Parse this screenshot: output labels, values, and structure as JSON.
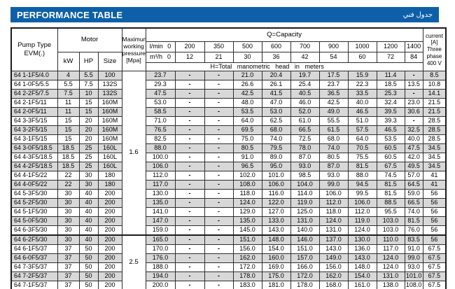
{
  "title_bar": {
    "title": "PERFORMANCE TABLE",
    "title_ar": "جدول فني",
    "bg_color": "#0d60a8"
  },
  "colors": {
    "header_bar_blue": "#0d60a8",
    "row_stripe_gray": "#d8d8d8",
    "border_dark": "#2e2e2e"
  },
  "table": {
    "headers": {
      "pump_type_line1": "Pump Type",
      "pump_type_line2": "EVM(.)",
      "motor": "Motor",
      "kw": "kW",
      "hp": "HP",
      "size": "Size",
      "pressure": [
        "Maximum",
        "working",
        "pressure",
        "[Mpa]"
      ],
      "q_capacity": "Q=Capacity",
      "lmin_label": "l/min",
      "m3h_label": "m³/h",
      "lmin_values": [
        "0",
        "200",
        "350",
        "500",
        "600",
        "700",
        "900",
        "1000",
        "1200",
        "1400"
      ],
      "m3h_values": [
        "0",
        "12",
        "21",
        "30",
        "36",
        "42",
        "54",
        "60",
        "72",
        "84"
      ],
      "h_total": "H=Total manometric head in meters",
      "current": [
        "current",
        "[A]",
        "Three",
        "phase",
        "400 V"
      ]
    },
    "pressure_groups": [
      {
        "value": "1.6",
        "start": 0,
        "span": 18
      },
      {
        "value": "2.5",
        "start": 18,
        "span": 6
      }
    ],
    "rows": [
      {
        "type": "64 1-1F5/4.0",
        "kw": "4",
        "hp": "5.5",
        "size": "100",
        "values": [
          "23.7",
          "-",
          "-",
          "21.0",
          "20.4",
          "19.7",
          "17.5",
          "15.9",
          "11.4",
          "-"
        ],
        "current": "8.5"
      },
      {
        "type": "64 1-0F5/5.5",
        "kw": "5.5",
        "hp": "7.5",
        "size": "132S",
        "values": [
          "29.3",
          "-",
          "-",
          "26.6",
          "26.1",
          "25.4",
          "23.7",
          "22.3",
          "18.5",
          "13.5"
        ],
        "current": "10.8"
      },
      {
        "type": "64 2-2F5/7.5",
        "kw": "7.5",
        "hp": "10",
        "size": "132S",
        "values": [
          "47.5",
          "-",
          "-",
          "42.5",
          "41.5",
          "40.5",
          "36.5",
          "33.5",
          "25.3",
          "-"
        ],
        "current": "14.1"
      },
      {
        "type": "64 2-1F5/11",
        "kw": "11",
        "hp": "15",
        "size": "160M",
        "values": [
          "53.0",
          "-",
          "-",
          "48.0",
          "47.0",
          "46.0",
          "42.5",
          "40.0",
          "32.4",
          "23.0"
        ],
        "current": "21.5"
      },
      {
        "type": "64 2-0F5/11",
        "kw": "11",
        "hp": "15",
        "size": "160M",
        "values": [
          "58.5",
          "-",
          "-",
          "53.5",
          "53.0",
          "52.0",
          "49.0",
          "46.5",
          "39.5",
          "30.6"
        ],
        "current": "21.5"
      },
      {
        "type": "64 3-3F5/15",
        "kw": "15",
        "hp": "20",
        "size": "160M",
        "values": [
          "71.0",
          "-",
          "-",
          "64.0",
          "62.5",
          "61.0",
          "55.5",
          "51.0",
          "39.3",
          "-"
        ],
        "current": "28.5"
      },
      {
        "type": "64 3-2F5/15",
        "kw": "15",
        "hp": "20",
        "size": "160M",
        "values": [
          "76.5",
          "-",
          "-",
          "69.5",
          "68.0",
          "66.5",
          "61.5",
          "57.5",
          "46.5",
          "32.5"
        ],
        "current": "28.5"
      },
      {
        "type": "64 3-1F5/15",
        "kw": "15",
        "hp": "20",
        "size": "160M",
        "values": [
          "82.5",
          "-",
          "-",
          "75.0",
          "74.0",
          "72.5",
          "68.0",
          "64.0",
          "53.5",
          "40.0"
        ],
        "current": "28.5"
      },
      {
        "type": "64 3-0F5/18.5",
        "kw": "18.5",
        "hp": "25",
        "size": "160L",
        "values": [
          "88.0",
          "-",
          "-",
          "80.5",
          "79.5",
          "78.0",
          "74.0",
          "70.5",
          "60.5",
          "47.5"
        ],
        "current": "34.5"
      },
      {
        "type": "64 4-3F5/18.5",
        "kw": "18.5",
        "hp": "25",
        "size": "160L",
        "values": [
          "100.0",
          "-",
          "-",
          "91.0",
          "89.0",
          "87.0",
          "80.5",
          "75.5",
          "60.5",
          "42.0"
        ],
        "current": "34.5"
      },
      {
        "type": "64 4-2F5/18.5",
        "kw": "18.5",
        "hp": "25",
        "size": "160L",
        "values": [
          "106.0",
          "-",
          "-",
          "96.5",
          "95.0",
          "93.0",
          "87.0",
          "81.5",
          "67.5",
          "49.5"
        ],
        "current": "34.5"
      },
      {
        "type": "64 4-1F5/22",
        "kw": "22",
        "hp": "30",
        "size": "180",
        "values": [
          "112.0",
          "-",
          "-",
          "102.0",
          "101.0",
          "98.5",
          "93.0",
          "88.0",
          "74.5",
          "57.0"
        ],
        "current": "41"
      },
      {
        "type": "64 4-0F5/22",
        "kw": "22",
        "hp": "30",
        "size": "180",
        "values": [
          "117.0",
          "-",
          "-",
          "108.0",
          "106.0",
          "104.0",
          "99.0",
          "94.5",
          "81.5",
          "64.5"
        ],
        "current": "41"
      },
      {
        "type": "64 5-3F5/30",
        "kw": "30",
        "hp": "40",
        "size": "200",
        "values": [
          "130.0",
          "-",
          "-",
          "118.0",
          "116.0",
          "114.0",
          "106.0",
          "99.5",
          "81.5",
          "59.0"
        ],
        "current": "56"
      },
      {
        "type": "64 5-2F5/30",
        "kw": "30",
        "hp": "40",
        "size": "200",
        "values": [
          "135.0",
          "-",
          "-",
          "124.0",
          "122.0",
          "119.0",
          "112.0",
          "106.0",
          "88.5",
          "66.5"
        ],
        "current": "56"
      },
      {
        "type": "64 5-1F5/30",
        "kw": "30",
        "hp": "40",
        "size": "200",
        "values": [
          "141.0",
          "-",
          "-",
          "129.0",
          "127.0",
          "125.0",
          "118.0",
          "112.0",
          "95.5",
          "74.0"
        ],
        "current": "56"
      },
      {
        "type": "64 5-0F5/30",
        "kw": "30",
        "hp": "40",
        "size": "200",
        "values": [
          "147.0",
          "-",
          "-",
          "135.0",
          "133.0",
          "131.0",
          "124.0",
          "119.0",
          "103.0",
          "81.5"
        ],
        "current": "56"
      },
      {
        "type": "64 6-3F5/30",
        "kw": "30",
        "hp": "40",
        "size": "200",
        "values": [
          "159.0",
          "-",
          "-",
          "145.0",
          "143.0",
          "140.0",
          "131.0",
          "124.0",
          "103.0",
          "76.0"
        ],
        "current": "56"
      },
      {
        "type": "64 6-2F5/30",
        "kw": "30",
        "hp": "40",
        "size": "200",
        "values": [
          "165.0",
          "-",
          "-",
          "151.0",
          "148.0",
          "146.0",
          "137.0",
          "130.0",
          "110.0",
          "83.5"
        ],
        "current": "56"
      },
      {
        "type": "64 6-1F5/37",
        "kw": "37",
        "hp": "50",
        "size": "200",
        "values": [
          "170.0",
          "-",
          "-",
          "156.0",
          "154.0",
          "151.0",
          "143.0",
          "136.0",
          "117.0",
          "91.0"
        ],
        "current": "67.5"
      },
      {
        "type": "64 6-0F5/37",
        "kw": "37",
        "hp": "50",
        "size": "200",
        "values": [
          "176.0",
          "-",
          "-",
          "162.0",
          "160.0",
          "157.0",
          "149.0",
          "143.0",
          "124.0",
          "99.0"
        ],
        "current": "67.5"
      },
      {
        "type": "64 7-3F5/37",
        "kw": "37",
        "hp": "50",
        "size": "200",
        "values": [
          "188.0",
          "-",
          "-",
          "172.0",
          "169.0",
          "166.0",
          "156.0",
          "148.0",
          "124.0",
          "93.0"
        ],
        "current": "67.5"
      },
      {
        "type": "64 7-2F5/37",
        "kw": "37",
        "hp": "50",
        "size": "200",
        "values": [
          "194.0",
          "-",
          "-",
          "178.0",
          "175.0",
          "172.0",
          "162.0",
          "154.0",
          "131.0",
          "101.0"
        ],
        "current": "67.5"
      },
      {
        "type": "64 7-1F5/37",
        "kw": "37",
        "hp": "50",
        "size": "200",
        "values": [
          "200.0",
          "-",
          "-",
          "183.0",
          "181.0",
          "178.0",
          "168.0",
          "161.0",
          "138.0",
          "108.0"
        ],
        "current": "67.5"
      }
    ]
  }
}
